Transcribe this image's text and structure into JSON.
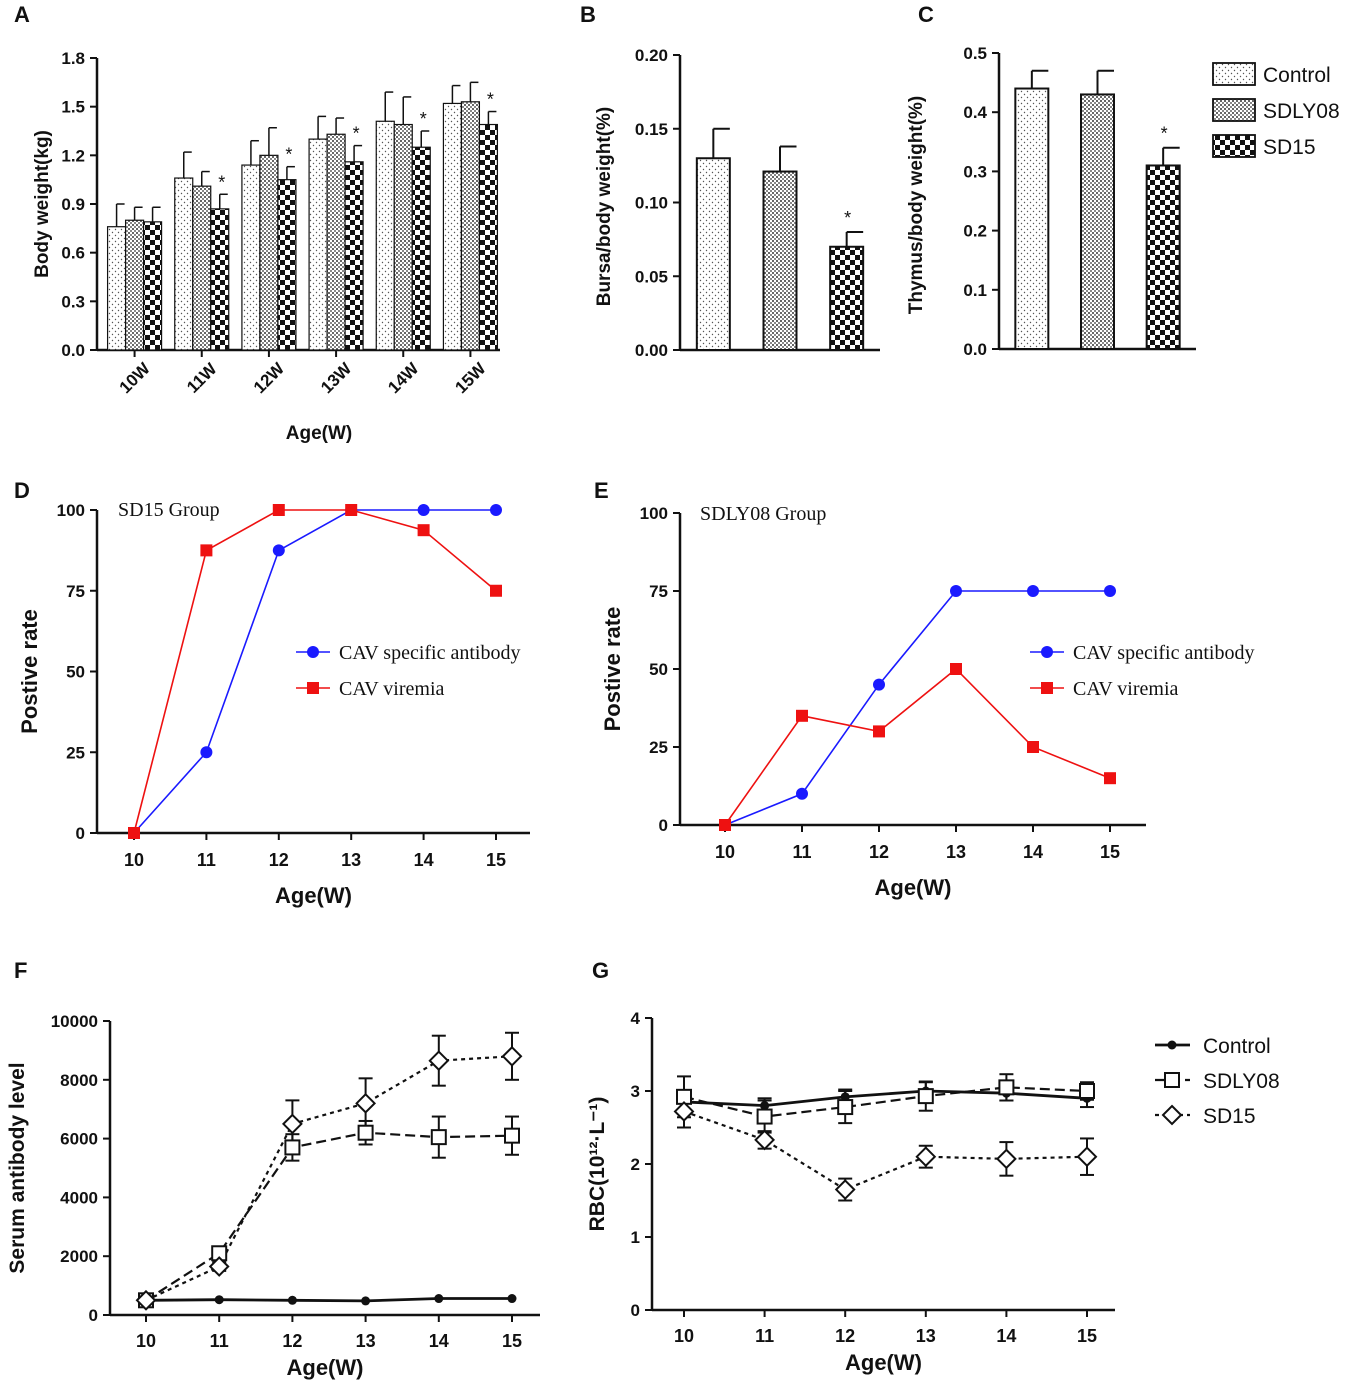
{
  "chart_data": [
    {
      "panel": "A",
      "type": "bar",
      "ylabel": "Body weight(kg)",
      "xlabel": "Age(W)",
      "ylim": [
        0,
        1.8
      ],
      "yticks": [
        "0.0",
        "0.3",
        "0.6",
        "0.9",
        "1.2",
        "1.5",
        "1.8"
      ],
      "categories": [
        "10W",
        "11W",
        "12W",
        "13W",
        "14W",
        "15W"
      ],
      "series": [
        {
          "name": "Control",
          "values": [
            0.76,
            1.06,
            1.14,
            1.3,
            1.41,
            1.52
          ],
          "errors": [
            0.14,
            0.16,
            0.15,
            0.14,
            0.18,
            0.11
          ]
        },
        {
          "name": "SDLY08",
          "values": [
            0.8,
            1.01,
            1.2,
            1.33,
            1.39,
            1.53
          ],
          "errors": [
            0.08,
            0.09,
            0.17,
            0.1,
            0.17,
            0.12
          ]
        },
        {
          "name": "SD15",
          "values": [
            0.79,
            0.87,
            1.05,
            1.16,
            1.25,
            1.39
          ],
          "errors": [
            0.09,
            0.09,
            0.08,
            0.1,
            0.1,
            0.08
          ]
        }
      ],
      "sig": [
        "",
        "*",
        "*",
        "*",
        "*",
        "*"
      ]
    },
    {
      "panel": "B",
      "type": "bar",
      "ylabel": "Bursa/body weight(%)",
      "ylim": [
        0,
        0.2
      ],
      "yticks": [
        "0.00",
        "0.05",
        "0.10",
        "0.15",
        "0.20"
      ],
      "categories": [
        "Control",
        "SDLY08",
        "SD15"
      ],
      "values": [
        0.13,
        0.121,
        0.07
      ],
      "errors": [
        0.02,
        0.017,
        0.01
      ],
      "sig": [
        "",
        "",
        "*"
      ]
    },
    {
      "panel": "C",
      "type": "bar",
      "ylabel": "Thymus/body weight(%)",
      "ylim": [
        0,
        0.5
      ],
      "yticks": [
        "0.0",
        "0.1",
        "0.2",
        "0.3",
        "0.4",
        "0.5"
      ],
      "categories": [
        "Control",
        "SDLY08",
        "SD15"
      ],
      "values": [
        0.44,
        0.43,
        0.31
      ],
      "errors": [
        0.03,
        0.04,
        0.03
      ],
      "sig": [
        "",
        "",
        "*"
      ]
    },
    {
      "panel": "D",
      "type": "line",
      "title": "SD15 Group",
      "ylabel": "Postive rate",
      "xlabel": "Age(W)",
      "x": [
        10,
        11,
        12,
        13,
        14,
        15
      ],
      "ylim": [
        0,
        100
      ],
      "yticks": [
        "0",
        "25",
        "50",
        "75",
        "100"
      ],
      "series": [
        {
          "name": "CAV specific antibody",
          "values": [
            0,
            25,
            87.5,
            100,
            100,
            100
          ],
          "color": "#1a1aff"
        },
        {
          "name": "CAV viremia",
          "values": [
            0,
            87.5,
            100,
            100,
            93.75,
            75
          ],
          "color": "#ee1111"
        }
      ]
    },
    {
      "panel": "E",
      "type": "line",
      "title": "SDLY08 Group",
      "ylabel": "Postive rate",
      "xlabel": "Age(W)",
      "x": [
        10,
        11,
        12,
        13,
        14,
        15
      ],
      "ylim": [
        0,
        100
      ],
      "yticks": [
        "0",
        "25",
        "50",
        "75",
        "100"
      ],
      "series": [
        {
          "name": "CAV specific antibody",
          "values": [
            0,
            10,
            45,
            75,
            75,
            75
          ],
          "color": "#1a1aff"
        },
        {
          "name": "CAV viremia",
          "values": [
            0,
            35,
            30,
            50,
            25,
            15
          ],
          "color": "#ee1111"
        }
      ]
    },
    {
      "panel": "F",
      "type": "line",
      "ylabel": "Serum antibody level",
      "xlabel": "Age(W)",
      "x": [
        10,
        11,
        12,
        13,
        14,
        15
      ],
      "ylim": [
        0,
        10000
      ],
      "yticks": [
        "0",
        "2000",
        "4000",
        "6000",
        "8000",
        "10000"
      ],
      "series": [
        {
          "name": "Control",
          "values": [
            500,
            520,
            500,
            480,
            560,
            560
          ],
          "errors": [
            0,
            0,
            0,
            0,
            0,
            0
          ]
        },
        {
          "name": "SDLY08",
          "values": [
            500,
            2100,
            5700,
            6200,
            6050,
            6100
          ],
          "errors": [
            0,
            150,
            450,
            400,
            700,
            650
          ]
        },
        {
          "name": "SD15",
          "values": [
            500,
            1650,
            6500,
            7200,
            8650,
            8800
          ],
          "errors": [
            0,
            150,
            800,
            850,
            850,
            800
          ]
        }
      ]
    },
    {
      "panel": "G",
      "type": "line",
      "ylabel": "RBC(10¹²·L⁻¹)",
      "xlabel": "Age(W)",
      "x": [
        10,
        11,
        12,
        13,
        14,
        15
      ],
      "ylim": [
        0,
        4
      ],
      "yticks": [
        "0",
        "1",
        "2",
        "3",
        "4"
      ],
      "series": [
        {
          "name": "Control",
          "values": [
            2.85,
            2.8,
            2.92,
            3.0,
            2.97,
            2.9
          ],
          "errors": [
            0.15,
            0.1,
            0.1,
            0.12,
            0.1,
            0.12
          ]
        },
        {
          "name": "SDLY08",
          "values": [
            2.92,
            2.65,
            2.78,
            2.93,
            3.05,
            3.0
          ],
          "errors": [
            0.28,
            0.22,
            0.22,
            0.2,
            0.18,
            0.12
          ]
        },
        {
          "name": "SD15",
          "values": [
            2.72,
            2.33,
            1.65,
            2.1,
            2.07,
            2.1
          ],
          "errors": [
            0.22,
            0.12,
            0.15,
            0.15,
            0.23,
            0.25
          ]
        }
      ]
    }
  ],
  "panel_labels": [
    "A",
    "B",
    "C",
    "D",
    "E",
    "F",
    "G"
  ],
  "legend_bars": [
    "Control",
    "SDLY08",
    "SD15"
  ],
  "legend_lines": [
    "Control",
    "SDLY08",
    "SD15"
  ]
}
